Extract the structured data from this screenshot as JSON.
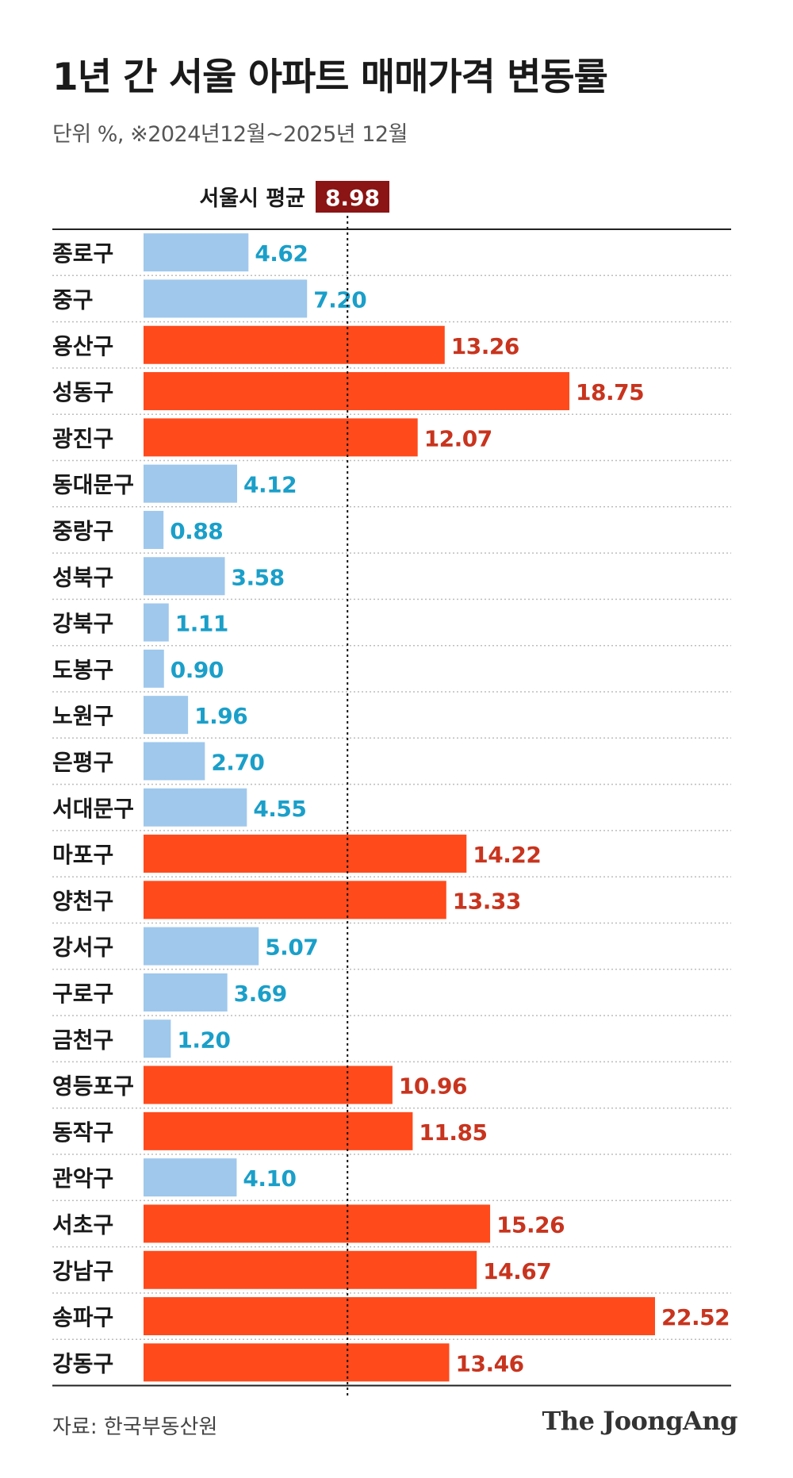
{
  "title": "1년 간 서울 아파트 매매가격 변동률",
  "subtitle": "단위 %, ※2024년12월~2025년 12월",
  "source": "자료: 한국부동산원",
  "brand": "The JoongAng",
  "colors": {
    "above_avg": "#FF4A1C",
    "below_avg": "#9FC8EC",
    "above_label": "#C8341E",
    "below_label": "#1A9FC9",
    "avg_badge": "#8B1414"
  },
  "chart_data": {
    "type": "bar",
    "orientation": "horizontal",
    "title": "1년 간 서울 아파트 매매가격 변동률",
    "unit": "%",
    "reference_line": {
      "label": "서울시 평균",
      "value": 8.98,
      "display": "8.98"
    },
    "categories": [
      "종로구",
      "중구",
      "용산구",
      "성동구",
      "광진구",
      "동대문구",
      "중랑구",
      "성북구",
      "강북구",
      "도봉구",
      "노원구",
      "은평구",
      "서대문구",
      "마포구",
      "양천구",
      "강서구",
      "구로구",
      "금천구",
      "영등포구",
      "동작구",
      "관악구",
      "서초구",
      "강남구",
      "송파구",
      "강동구"
    ],
    "values": [
      4.62,
      7.2,
      13.26,
      18.75,
      12.07,
      4.12,
      0.88,
      3.58,
      1.11,
      0.9,
      1.96,
      2.7,
      4.55,
      14.22,
      13.33,
      5.07,
      3.69,
      1.2,
      10.96,
      11.85,
      4.1,
      15.26,
      14.67,
      22.52,
      13.46
    ],
    "labels": [
      "4.62",
      "7.20",
      "13.26",
      "18.75",
      "12.07",
      "4.12",
      "0.88",
      "3.58",
      "1.11",
      "0.90",
      "1.96",
      "2.70",
      "4.55",
      "14.22",
      "13.33",
      "5.07",
      "3.69",
      "1.20",
      "10.96",
      "11.85",
      "4.10",
      "15.26",
      "14.67",
      "22.52",
      "13.46"
    ],
    "xlim": [
      0,
      22.52
    ]
  }
}
